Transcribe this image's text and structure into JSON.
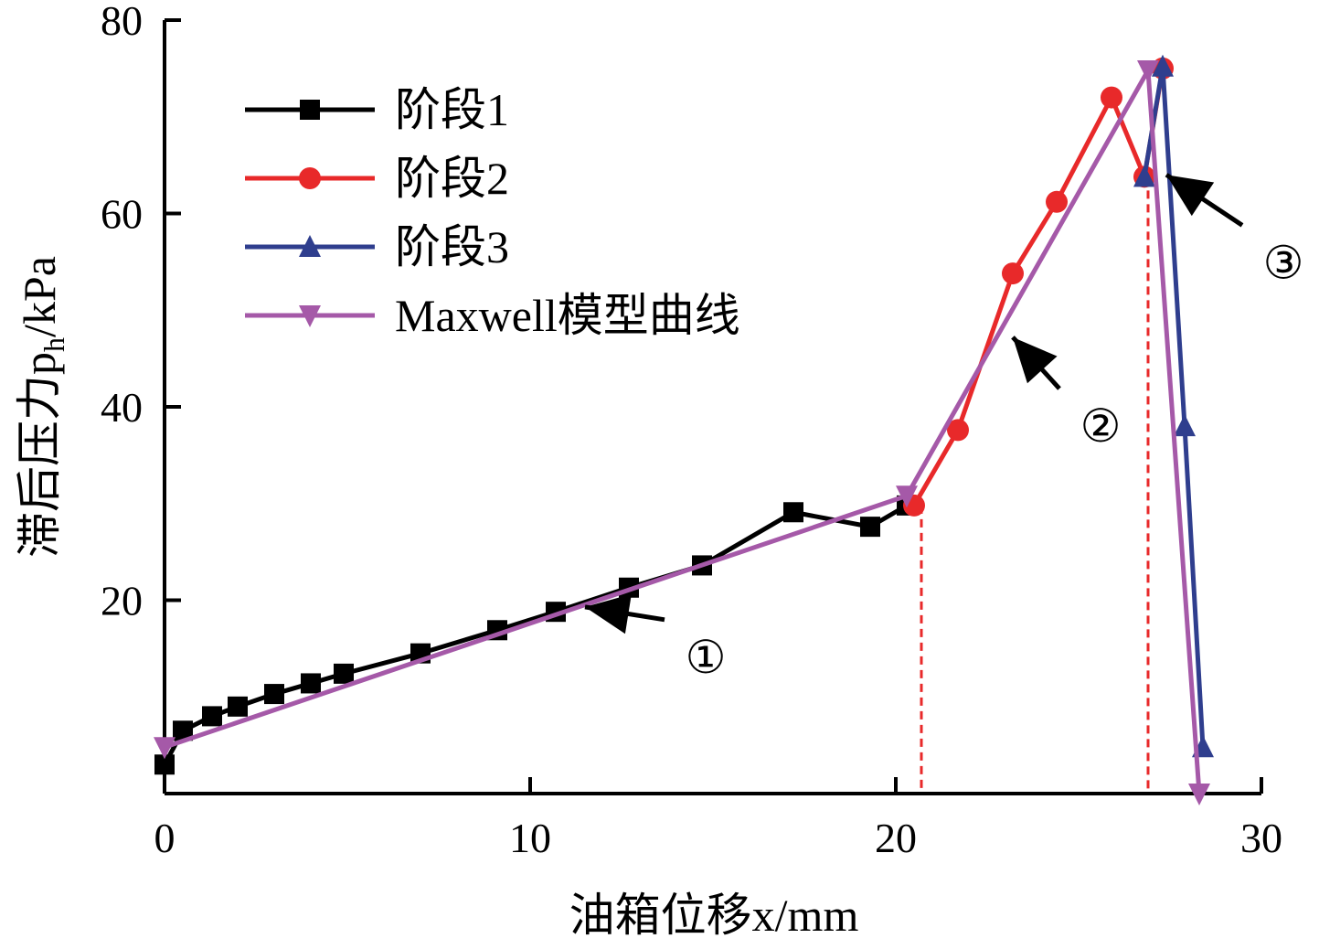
{
  "chart_data": {
    "type": "line",
    "xlabel": "油箱位移x/mm",
    "ylabel": "滞后压力p",
    "ylabel_sub": "h",
    "ylabel_unit": "/kPa",
    "xlim": [
      0,
      30
    ],
    "ylim": [
      0,
      80
    ],
    "x_ticks": [
      0,
      10,
      20,
      30
    ],
    "y_ticks": [
      20,
      40,
      60,
      80
    ],
    "x_tick_labels": [
      "0",
      "10",
      "20",
      "30"
    ],
    "y_tick_labels": [
      "20",
      "40",
      "60",
      "80"
    ],
    "grid": false,
    "legend_position": "top-left",
    "series": [
      {
        "name": "阶段1",
        "color": "#000000",
        "marker": "square",
        "x": [
          0.0,
          0.5,
          1.3,
          2.0,
          3.0,
          4.0,
          4.9,
          7.0,
          9.1,
          10.7,
          12.7,
          14.7,
          17.2,
          19.3,
          20.3
        ],
        "y": [
          3.0,
          6.5,
          8.0,
          9.0,
          10.3,
          11.4,
          12.4,
          14.5,
          16.9,
          18.8,
          21.3,
          23.6,
          29.1,
          27.6,
          29.8
        ]
      },
      {
        "name": "阶段2",
        "color": "#e8292a",
        "marker": "circle",
        "x": [
          20.5,
          21.7,
          23.2,
          24.4,
          25.9,
          26.8,
          27.3
        ],
        "y": [
          29.8,
          37.6,
          53.8,
          61.2,
          72.0,
          63.8,
          75.0
        ]
      },
      {
        "name": "阶段3",
        "color": "#2f3e8e",
        "marker": "triangle-up",
        "x": [
          26.8,
          27.3,
          27.9,
          28.4
        ],
        "y": [
          63.8,
          75.2,
          38.0,
          4.8
        ]
      },
      {
        "name": "Maxwell模型曲线",
        "color": "#a559a8",
        "marker": "triangle-down",
        "x": [
          0.0,
          20.3,
          26.9,
          28.3
        ],
        "y": [
          4.8,
          30.8,
          74.8,
          0.0
        ]
      }
    ],
    "reference_lines": [
      {
        "x": 20.7,
        "y_top": 29.8,
        "color": "#e8292a"
      },
      {
        "x": 26.9,
        "y_top": 63.8,
        "color": "#e8292a"
      }
    ],
    "annotations": [
      {
        "label": "①",
        "text_x": 14.8,
        "text_y": 14.2,
        "arrow_to": [
          11.5,
          19.3
        ]
      },
      {
        "label": "②",
        "text_x": 25.6,
        "text_y": 38.1,
        "arrow_to": [
          23.2,
          47.2
        ]
      },
      {
        "label": "③",
        "text_x": 30.6,
        "text_y": 55.0,
        "arrow_to": [
          27.4,
          64.0
        ]
      }
    ]
  }
}
